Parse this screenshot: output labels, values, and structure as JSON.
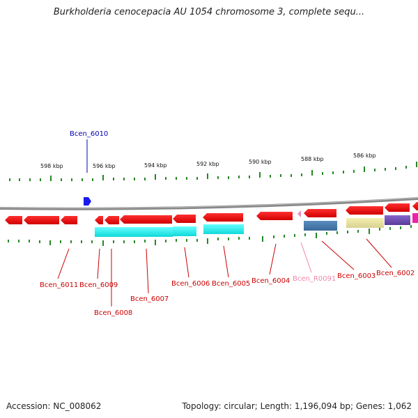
{
  "header": {
    "title": "Burkholderia cenocepacia AU 1054 chromosome 3, complete sequ..."
  },
  "footer": {
    "accession": "Accession: NC_008062",
    "stats": "Topology: circular; Length: 1,196,094 bp; Genes: 1,062"
  },
  "ruler": {
    "labels": [
      "598 kbp",
      "596 kbp",
      "594 kbp",
      "592 kbp",
      "590 kbp",
      "588 kbp",
      "586 kbp"
    ]
  },
  "genes": {
    "bcen_6010": "Bcen_6010",
    "bcen_6011": "Bcen_6011",
    "bcen_6009": "Bcen_6009",
    "bcen_6008": "Bcen_6008",
    "bcen_6007": "Bcen_6007",
    "bcen_6006": "Bcen_6006",
    "bcen_6005": "Bcen_6005",
    "bcen_6004": "Bcen_6004",
    "bcen_r0091": "Bcen_R0091",
    "bcen_6003": "Bcen_6003",
    "bcen_6002": "Bcen_6002"
  },
  "colors": {
    "gene_red": "#ee1111",
    "gene_blue": "#1a1aee",
    "rna_pink": "#ee88bb",
    "cds_cyan": "#11eeee",
    "label_red": "#cc0000",
    "label_blue": "#0000bb",
    "label_pink": "#ee88aa",
    "tick_green": "#228822"
  }
}
